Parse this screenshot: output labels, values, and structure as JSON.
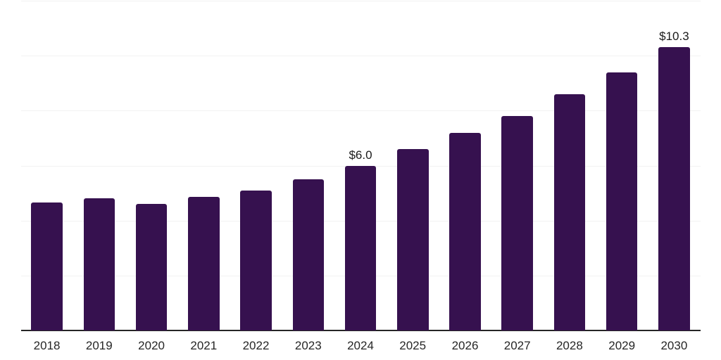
{
  "chart_data": {
    "type": "bar",
    "title": "",
    "xlabel": "",
    "ylabel": "",
    "categories": [
      "2018",
      "2019",
      "2020",
      "2021",
      "2022",
      "2023",
      "2024",
      "2025",
      "2026",
      "2027",
      "2028",
      "2029",
      "2030"
    ],
    "values": [
      4.65,
      4.8,
      4.6,
      4.85,
      5.1,
      5.5,
      6.0,
      6.6,
      7.2,
      7.8,
      8.6,
      9.4,
      10.3
    ],
    "data_labels": [
      "",
      "",
      "",
      "",
      "",
      "",
      "$6.0",
      "",
      "",
      "",
      "",
      "",
      "$10.3"
    ],
    "ylim": [
      0,
      12
    ],
    "gridline_step": 2,
    "grid": "horizontal",
    "legend": "none",
    "y_axis_labels_visible": false,
    "colors": {
      "bar": "#36114F",
      "axis_line": "#262626",
      "gridline": "#F2F2F2",
      "tick_label": "#262626",
      "data_label": "#1A1A1A",
      "background": "#FFFFFF"
    }
  }
}
